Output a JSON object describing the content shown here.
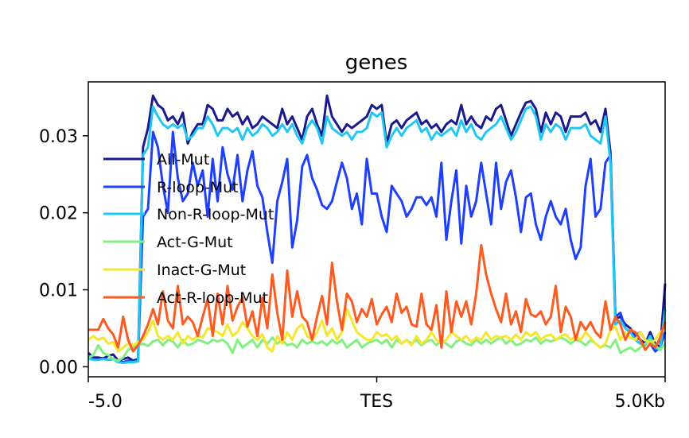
{
  "chart_data": {
    "type": "line",
    "title": "genes",
    "xlabel": "",
    "ylabel": "",
    "x_ticks": [
      "-5.0",
      "TES",
      "5.0Kb"
    ],
    "y_ticks": [
      "0.00",
      "0.01",
      "0.02",
      "0.03"
    ],
    "y_tick_values": [
      0.0,
      0.01,
      0.02,
      0.03
    ],
    "ylim": [
      -0.0013,
      0.037
    ],
    "legend_position": "left",
    "grid": false,
    "series": [
      {
        "name": "All-Mut",
        "color": "#1a1a8c",
        "values": [
          0.0018,
          0.0012,
          0.0012,
          0.0011,
          0.0014,
          0.0016,
          0.0008,
          0.001,
          0.0012,
          0.0008,
          0.001,
          0.0285,
          0.031,
          0.0352,
          0.034,
          0.0335,
          0.032,
          0.0325,
          0.0315,
          0.033,
          0.029,
          0.0305,
          0.0315,
          0.0315,
          0.034,
          0.0335,
          0.032,
          0.032,
          0.0335,
          0.0325,
          0.033,
          0.0315,
          0.0325,
          0.031,
          0.0315,
          0.0325,
          0.032,
          0.0315,
          0.031,
          0.0335,
          0.0315,
          0.0325,
          0.031,
          0.0295,
          0.0325,
          0.0335,
          0.0315,
          0.03,
          0.0352,
          0.0325,
          0.0315,
          0.0305,
          0.0315,
          0.031,
          0.0315,
          0.032,
          0.0325,
          0.034,
          0.0335,
          0.034,
          0.029,
          0.0315,
          0.032,
          0.031,
          0.032,
          0.0325,
          0.033,
          0.0315,
          0.032,
          0.031,
          0.0315,
          0.0305,
          0.0315,
          0.032,
          0.0315,
          0.034,
          0.0315,
          0.0325,
          0.0315,
          0.031,
          0.0325,
          0.032,
          0.0335,
          0.034,
          0.032,
          0.03,
          0.0315,
          0.033,
          0.0343,
          0.0345,
          0.0335,
          0.0305,
          0.033,
          0.0315,
          0.033,
          0.0325,
          0.0305,
          0.0325,
          0.0325,
          0.0325,
          0.033,
          0.0315,
          0.032,
          0.0305,
          0.0335,
          0.0278,
          0.0062,
          0.0065,
          0.0055,
          0.005,
          0.004,
          0.0035,
          0.003,
          0.0045,
          0.003,
          0.0025,
          0.0108
        ]
      },
      {
        "name": "R-loop-Mut",
        "color": "#1f3fff",
        "values": [
          0.0012,
          0.001,
          0.0009,
          0.0011,
          0.0009,
          0.001,
          0.0007,
          0.0006,
          0.0008,
          0.0007,
          0.0008,
          0.0195,
          0.0205,
          0.0305,
          0.0285,
          0.0235,
          0.02,
          0.0305,
          0.0245,
          0.0215,
          0.0225,
          0.0265,
          0.0235,
          0.0255,
          0.0195,
          0.027,
          0.0215,
          0.0285,
          0.025,
          0.023,
          0.0275,
          0.0215,
          0.0255,
          0.028,
          0.0235,
          0.022,
          0.0175,
          0.0135,
          0.0215,
          0.024,
          0.027,
          0.0155,
          0.019,
          0.026,
          0.0275,
          0.0245,
          0.023,
          0.021,
          0.0205,
          0.0215,
          0.024,
          0.0265,
          0.0245,
          0.0205,
          0.0225,
          0.0185,
          0.027,
          0.0225,
          0.0225,
          0.0195,
          0.0175,
          0.0235,
          0.0225,
          0.0215,
          0.0195,
          0.0205,
          0.022,
          0.022,
          0.021,
          0.022,
          0.0195,
          0.0265,
          0.0165,
          0.0215,
          0.0255,
          0.016,
          0.0235,
          0.0195,
          0.0215,
          0.0265,
          0.0225,
          0.0185,
          0.0265,
          0.0205,
          0.024,
          0.0255,
          0.022,
          0.0175,
          0.022,
          0.0225,
          0.0185,
          0.0165,
          0.0195,
          0.0215,
          0.0195,
          0.0185,
          0.0205,
          0.0165,
          0.014,
          0.0155,
          0.0235,
          0.027,
          0.0195,
          0.0205,
          0.0265,
          0.0275,
          0.0065,
          0.007,
          0.005,
          0.0045,
          0.004,
          0.0045,
          0.0035,
          0.003,
          0.002,
          0.0025,
          0.0045
        ]
      },
      {
        "name": "Non-R-loop-Mut",
        "color": "#1ec8f0",
        "values": [
          0.0011,
          0.0009,
          0.0009,
          0.001,
          0.0009,
          0.001,
          0.0006,
          0.0005,
          0.0006,
          0.0006,
          0.0007,
          0.0275,
          0.0285,
          0.0338,
          0.0325,
          0.0315,
          0.031,
          0.0315,
          0.031,
          0.0315,
          0.0295,
          0.03,
          0.031,
          0.031,
          0.0325,
          0.0315,
          0.03,
          0.031,
          0.031,
          0.0305,
          0.031,
          0.0295,
          0.031,
          0.03,
          0.0305,
          0.0315,
          0.031,
          0.03,
          0.0305,
          0.0315,
          0.0305,
          0.0315,
          0.03,
          0.029,
          0.031,
          0.032,
          0.031,
          0.029,
          0.0325,
          0.031,
          0.0305,
          0.03,
          0.0305,
          0.0295,
          0.0305,
          0.0305,
          0.031,
          0.033,
          0.0325,
          0.033,
          0.0285,
          0.03,
          0.031,
          0.03,
          0.031,
          0.0315,
          0.032,
          0.0305,
          0.031,
          0.0295,
          0.0305,
          0.03,
          0.0305,
          0.031,
          0.03,
          0.032,
          0.0305,
          0.0315,
          0.03,
          0.0295,
          0.0305,
          0.031,
          0.0315,
          0.0325,
          0.031,
          0.0295,
          0.0305,
          0.032,
          0.0335,
          0.0338,
          0.0325,
          0.0295,
          0.0315,
          0.0305,
          0.0315,
          0.031,
          0.0295,
          0.031,
          0.031,
          0.031,
          0.0315,
          0.03,
          0.0295,
          0.029,
          0.0325,
          0.0265,
          0.0055,
          0.006,
          0.005,
          0.0045,
          0.0035,
          0.003,
          0.0028,
          0.004,
          0.0025,
          0.0022,
          0.0075
        ]
      },
      {
        "name": "Act-G-Mut",
        "color": "#80f080",
        "values": [
          0.0012,
          0.0015,
          0.0028,
          0.0018,
          0.0015,
          0.001,
          0.0008,
          0.0012,
          0.0022,
          0.0025,
          0.0028,
          0.003,
          0.0027,
          0.0033,
          0.0035,
          0.0028,
          0.0035,
          0.0033,
          0.0025,
          0.0035,
          0.0028,
          0.003,
          0.0035,
          0.0033,
          0.003,
          0.0035,
          0.0033,
          0.0035,
          0.003,
          0.0018,
          0.0035,
          0.0025,
          0.003,
          0.0035,
          0.0025,
          0.0035,
          0.003,
          0.0038,
          0.003,
          0.0035,
          0.0028,
          0.003,
          0.0025,
          0.0035,
          0.003,
          0.0033,
          0.003,
          0.0033,
          0.0028,
          0.0035,
          0.003,
          0.0035,
          0.0025,
          0.003,
          0.0035,
          0.0025,
          0.003,
          0.0033,
          0.0035,
          0.003,
          0.0035,
          0.0025,
          0.0035,
          0.003,
          0.0035,
          0.003,
          0.0035,
          0.0028,
          0.0033,
          0.0035,
          0.0028,
          0.0035,
          0.003,
          0.0025,
          0.0033,
          0.0035,
          0.003,
          0.0028,
          0.0035,
          0.003,
          0.0035,
          0.003,
          0.0035,
          0.0038,
          0.003,
          0.0035,
          0.0028,
          0.003,
          0.0035,
          0.0033,
          0.0038,
          0.003,
          0.0035,
          0.0033,
          0.0035,
          0.0038,
          0.0035,
          0.003,
          0.0035,
          0.0033,
          0.0028,
          0.0035,
          0.003,
          0.0025,
          0.0028,
          0.0025,
          0.0035,
          0.0018,
          0.0022,
          0.0025,
          0.002,
          0.0025,
          0.003,
          0.0035,
          0.0028,
          0.0022,
          0.003
        ]
      },
      {
        "name": "Inact-G-Mut",
        "color": "#f5e630",
        "values": [
          0.0035,
          0.004,
          0.0035,
          0.0038,
          0.003,
          0.0032,
          0.002,
          0.0025,
          0.003,
          0.0028,
          0.0032,
          0.0035,
          0.0045,
          0.006,
          0.004,
          0.0035,
          0.004,
          0.0035,
          0.0045,
          0.003,
          0.004,
          0.0035,
          0.004,
          0.0038,
          0.005,
          0.0048,
          0.0045,
          0.004,
          0.0055,
          0.004,
          0.0045,
          0.0058,
          0.005,
          0.004,
          0.0035,
          0.0042,
          0.0025,
          0.002,
          0.004,
          0.003,
          0.0045,
          0.0035,
          0.005,
          0.0055,
          0.004,
          0.0035,
          0.0045,
          0.006,
          0.004,
          0.005,
          0.0035,
          0.0045,
          0.0075,
          0.006,
          0.0045,
          0.004,
          0.0035,
          0.0035,
          0.0045,
          0.004,
          0.0042,
          0.0035,
          0.004,
          0.003,
          0.0035,
          0.0028,
          0.004,
          0.003,
          0.0035,
          0.0045,
          0.0035,
          0.003,
          0.0035,
          0.0045,
          0.004,
          0.0035,
          0.004,
          0.0032,
          0.0038,
          0.0035,
          0.0045,
          0.0035,
          0.004,
          0.0038,
          0.004,
          0.0035,
          0.0042,
          0.0035,
          0.0045,
          0.004,
          0.0045,
          0.0035,
          0.004,
          0.0042,
          0.0035,
          0.004,
          0.0042,
          0.0035,
          0.004,
          0.0035,
          0.0045,
          0.0038,
          0.003,
          0.0025,
          0.003,
          0.0048,
          0.0052,
          0.0035,
          0.0045,
          0.0038,
          0.0035,
          0.0045,
          0.0035,
          0.003,
          0.0035,
          0.0045,
          0.005
        ]
      },
      {
        "name": "Act-R-loop-Mut",
        "color": "#ff5a1f",
        "values": [
          0.0048,
          0.0048,
          0.0048,
          0.0062,
          0.005,
          0.0042,
          0.0025,
          0.0065,
          0.0035,
          0.002,
          0.0028,
          0.004,
          0.0055,
          0.0075,
          0.0055,
          0.0098,
          0.006,
          0.005,
          0.0105,
          0.0055,
          0.0065,
          0.0058,
          0.004,
          0.0065,
          0.0088,
          0.004,
          0.0095,
          0.0055,
          0.0105,
          0.006,
          0.0078,
          0.009,
          0.0052,
          0.0072,
          0.004,
          0.009,
          0.005,
          0.012,
          0.007,
          0.0035,
          0.0125,
          0.0065,
          0.0098,
          0.0065,
          0.0058,
          0.0035,
          0.0065,
          0.0092,
          0.0055,
          0.0135,
          0.0085,
          0.0048,
          0.0095,
          0.0085,
          0.0058,
          0.0075,
          0.0065,
          0.0088,
          0.0055,
          0.0068,
          0.0078,
          0.0058,
          0.0095,
          0.007,
          0.0078,
          0.0055,
          0.0052,
          0.0095,
          0.0055,
          0.0048,
          0.008,
          0.0025,
          0.0098,
          0.0045,
          0.0085,
          0.0065,
          0.0085,
          0.0055,
          0.0095,
          0.0158,
          0.012,
          0.0095,
          0.0075,
          0.0058,
          0.0095,
          0.0055,
          0.0072,
          0.0045,
          0.0088,
          0.0068,
          0.0065,
          0.0072,
          0.0055,
          0.0065,
          0.0105,
          0.0045,
          0.0078,
          0.0065,
          0.0035,
          0.0058,
          0.0048,
          0.0058,
          0.0045,
          0.0038,
          0.0085,
          0.0048,
          0.0065,
          0.0055,
          0.0035,
          0.0048,
          0.0045,
          0.0035,
          0.0022,
          0.003,
          0.0025,
          0.0038,
          0.0058
        ]
      }
    ]
  }
}
